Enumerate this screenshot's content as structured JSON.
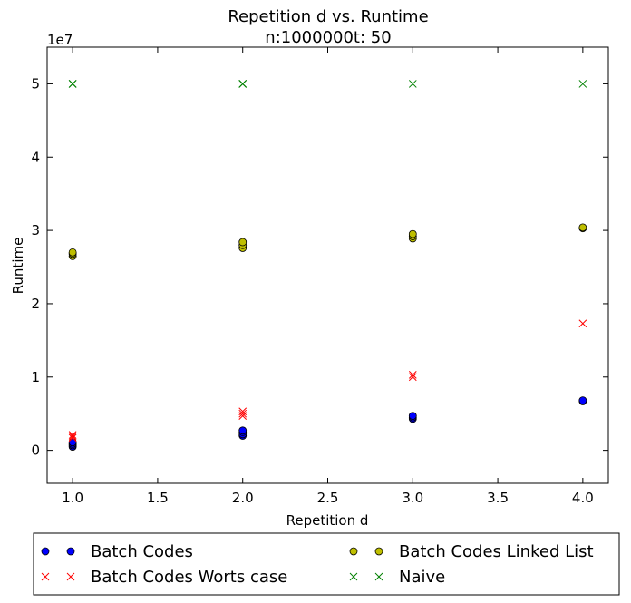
{
  "chart_data": {
    "type": "scatter",
    "title_line1": "Repetition d vs. Runtime",
    "title_line2": "n:1000000t: 50",
    "xlabel": "Repetition d",
    "ylabel": "Runtime",
    "y_scale_label": "1e7",
    "xlim": [
      0.85,
      4.15
    ],
    "ylim": [
      -4500000,
      55000000
    ],
    "x_ticks": [
      1.0,
      1.5,
      2.0,
      2.5,
      3.0,
      3.5,
      4.0
    ],
    "x_tick_labels": [
      "1.0",
      "1.5",
      "2.0",
      "2.5",
      "3.0",
      "3.5",
      "4.0"
    ],
    "y_ticks": [
      0,
      10000000,
      20000000,
      30000000,
      40000000,
      50000000
    ],
    "y_tick_labels": [
      "0",
      "1",
      "2",
      "3",
      "4",
      "5"
    ],
    "grid": false,
    "legend_position": "below",
    "series": [
      {
        "name": "Batch Codes",
        "marker": "circle",
        "color": "#0000ff",
        "points": [
          [
            1,
            500000
          ],
          [
            1,
            700000
          ],
          [
            1,
            900000
          ],
          [
            1,
            1100000
          ],
          [
            2,
            2000000
          ],
          [
            2,
            2200000
          ],
          [
            2,
            2500000
          ],
          [
            2,
            2700000
          ],
          [
            3,
            4300000
          ],
          [
            3,
            4500000
          ],
          [
            3,
            4700000
          ],
          [
            4,
            6700000
          ],
          [
            4,
            6800000
          ]
        ]
      },
      {
        "name": "Batch Codes Worts case",
        "marker": "x",
        "color": "#ff0000",
        "points": [
          [
            1,
            1700000
          ],
          [
            1,
            1900000
          ],
          [
            1,
            2100000
          ],
          [
            2,
            4700000
          ],
          [
            2,
            5000000
          ],
          [
            2,
            5300000
          ],
          [
            3,
            10000000
          ],
          [
            3,
            10300000
          ],
          [
            4,
            17300000
          ]
        ]
      },
      {
        "name": "Batch Codes Linked List",
        "marker": "circle",
        "color": "#bfbf00",
        "points": [
          [
            1,
            26500000
          ],
          [
            1,
            26800000
          ],
          [
            1,
            27000000
          ],
          [
            2,
            27600000
          ],
          [
            2,
            28000000
          ],
          [
            2,
            28400000
          ],
          [
            3,
            28900000
          ],
          [
            3,
            29200000
          ],
          [
            3,
            29500000
          ],
          [
            4,
            30300000
          ],
          [
            4,
            30400000
          ]
        ]
      },
      {
        "name": "Naive",
        "marker": "x",
        "color": "#008000",
        "points": [
          [
            1,
            50000000
          ],
          [
            1,
            50000000
          ],
          [
            1,
            50000000
          ],
          [
            2,
            50000000
          ],
          [
            2,
            50000000
          ],
          [
            2,
            50000000
          ],
          [
            3,
            50000000
          ],
          [
            4,
            50000000
          ]
        ]
      }
    ]
  }
}
